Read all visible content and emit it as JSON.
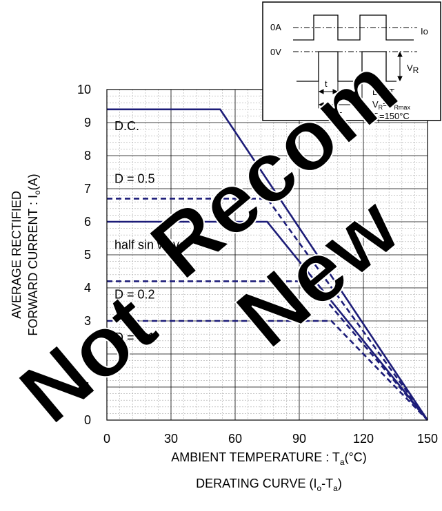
{
  "chart_data": {
    "type": "line",
    "y_label": [
      "AVERAGE RECTIFIED",
      "FORWARD CURRENT : I",
      "o",
      "(A)"
    ],
    "x_label": [
      "AMBIENT TEMPERATURE : T",
      "a",
      "(°C)"
    ],
    "caption": [
      "DERATING CURVE (I",
      "o",
      "-T",
      "a",
      ")"
    ],
    "xlim": [
      0,
      150
    ],
    "xticks": [
      0,
      30,
      60,
      90,
      120,
      150
    ],
    "ylim": [
      0,
      10
    ],
    "yticks": [
      0,
      1,
      2,
      3,
      4,
      5,
      6,
      7,
      8,
      9,
      10
    ],
    "grid": true,
    "minor_grid": true,
    "series": [
      {
        "name": "D.C.",
        "color": "#1c1c78",
        "dash": false,
        "x": [
          0,
          53,
          150
        ],
        "values": [
          9.4,
          9.4,
          0
        ]
      },
      {
        "name": "D = 0.5",
        "color": "#1c1c78",
        "dash": true,
        "x": [
          0,
          75,
          150
        ],
        "values": [
          6.7,
          6.7,
          0
        ]
      },
      {
        "name": "half sin wave",
        "color": "#1c1c78",
        "dash": false,
        "x": [
          0,
          75,
          150
        ],
        "values": [
          6.0,
          6.0,
          0
        ]
      },
      {
        "name": "D = 0.2",
        "color": "#1c1c78",
        "dash": true,
        "x": [
          0,
          95,
          150
        ],
        "values": [
          4.2,
          4.2,
          0
        ]
      },
      {
        "name": "D = 0.1",
        "color": "#1c1c78",
        "dash": true,
        "x": [
          0,
          105,
          150
        ],
        "values": [
          3.0,
          3.0,
          0
        ]
      }
    ],
    "inset": {
      "current": "0A",
      "voltage": "0V",
      "io": "Io",
      "vr": [
        "V",
        "R"
      ],
      "t": "t",
      "period": "T",
      "duty": "D=t/T",
      "vr_eq": [
        "V",
        "R",
        "=V",
        "Rmax"
      ],
      "tj": [
        "T",
        "j",
        "=150°C"
      ]
    },
    "watermark": [
      "Not",
      "Recom",
      "New"
    ]
  }
}
